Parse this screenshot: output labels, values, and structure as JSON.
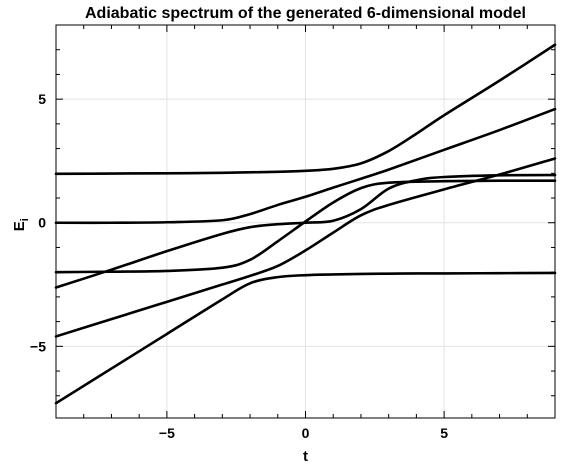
{
  "chart_data": {
    "type": "line",
    "title": "Adiabatic spectrum of the generated 6-dimensional model",
    "xlabel": "t",
    "ylabel": "E",
    "ylabel_subscript": "i",
    "xlim": [
      -9,
      9
    ],
    "ylim": [
      -7.9,
      8.0
    ],
    "xticks": [
      -5,
      0,
      5
    ],
    "xtick_labels": [
      "−5",
      "0",
      "5"
    ],
    "yticks": [
      -5,
      0,
      5
    ],
    "ytick_labels": [
      "−5",
      "0",
      "5"
    ],
    "grid": true,
    "legend": "none",
    "line_color": "#000000",
    "series": [
      {
        "x": [
          -9,
          -7,
          -5,
          -3,
          -2,
          -1,
          0,
          1,
          2,
          3,
          4,
          5,
          7,
          9
        ],
        "y": [
          -7.3,
          -5.9,
          -4.5,
          -3.1,
          -2.45,
          -2.2,
          -2.12,
          -2.09,
          -2.07,
          -2.06,
          -2.05,
          -2.05,
          -2.04,
          -2.03
        ]
      },
      {
        "x": [
          -9,
          -7,
          -5,
          -3,
          -2,
          -1,
          0,
          1,
          2,
          3,
          5,
          7,
          9
        ],
        "y": [
          -4.6,
          -3.9,
          -3.2,
          -2.5,
          -2.15,
          -1.75,
          -1.12,
          -0.4,
          0.3,
          0.72,
          1.35,
          1.95,
          2.6
        ]
      },
      {
        "x": [
          -9,
          -7,
          -5,
          -3,
          -2,
          -1,
          0,
          1,
          2,
          3,
          4,
          5,
          7,
          9
        ],
        "y": [
          -2.62,
          -1.9,
          -1.15,
          -0.45,
          -0.18,
          -0.06,
          0.0,
          0.08,
          0.55,
          1.38,
          1.72,
          1.85,
          1.92,
          1.93
        ]
      },
      {
        "x": [
          -9,
          -7,
          -5,
          -3,
          -2,
          -1,
          0,
          1,
          2,
          3,
          5,
          7,
          9
        ],
        "y": [
          -2.0,
          -1.98,
          -1.95,
          -1.82,
          -1.5,
          -0.75,
          0.05,
          0.82,
          1.4,
          1.62,
          1.68,
          1.7,
          1.7
        ]
      },
      {
        "x": [
          -9,
          -7,
          -5,
          -3,
          -2,
          -1,
          0,
          1,
          2,
          3,
          5,
          7,
          9
        ],
        "y": [
          0.0,
          0.0,
          0.02,
          0.1,
          0.35,
          0.72,
          1.05,
          1.42,
          1.78,
          2.15,
          2.95,
          3.75,
          4.6
        ]
      },
      {
        "x": [
          -9,
          -7,
          -5,
          -3,
          -2,
          -1,
          0,
          1,
          2,
          3,
          4,
          5,
          7,
          9
        ],
        "y": [
          1.98,
          1.99,
          2.0,
          2.02,
          2.04,
          2.06,
          2.1,
          2.18,
          2.4,
          2.9,
          3.6,
          4.35,
          5.75,
          7.2
        ]
      }
    ]
  }
}
